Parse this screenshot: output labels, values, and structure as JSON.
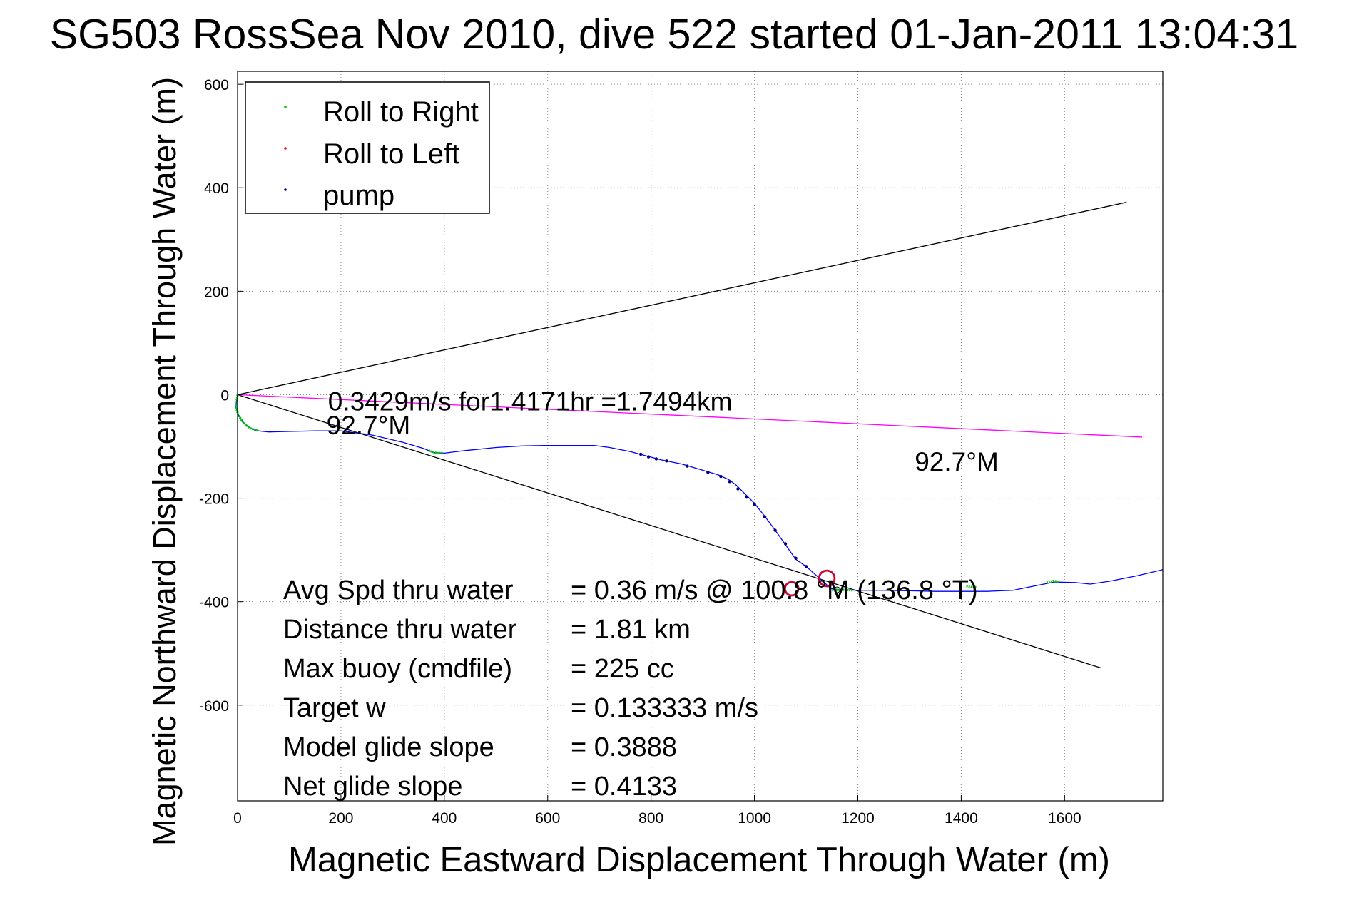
{
  "chart_data": {
    "type": "scatter",
    "title": "SG503 RossSea Nov 2010, dive 522 started 01-Jan-2011 13:04:31",
    "xlabel": "Magnetic Eastward Displacement Through Water (m)",
    "ylabel": "Magnetic Northward Displacement Through Water (m)",
    "xlim": [
      0,
      1790
    ],
    "ylim": [
      -785,
      625
    ],
    "xticks": [
      0,
      200,
      400,
      600,
      800,
      1000,
      1200,
      1400,
      1600
    ],
    "yticks": [
      600,
      400,
      200,
      0,
      -200,
      -400,
      -600
    ],
    "grid": true,
    "legend_position": "top-left",
    "legend": [
      {
        "label": "Roll to Right",
        "color": "#00cc00"
      },
      {
        "label": "Roll to Left",
        "color": "#ff0000"
      },
      {
        "label": "pump",
        "color": "#000080"
      }
    ],
    "track": {
      "color": "#0000ff",
      "points": [
        [
          0,
          0
        ],
        [
          -2,
          -12
        ],
        [
          -3,
          -25
        ],
        [
          2,
          -40
        ],
        [
          12,
          -55
        ],
        [
          25,
          -65
        ],
        [
          40,
          -70
        ],
        [
          60,
          -72
        ],
        [
          100,
          -71
        ],
        [
          150,
          -70
        ],
        [
          200,
          -70
        ],
        [
          260,
          -78
        ],
        [
          320,
          -92
        ],
        [
          360,
          -104
        ],
        [
          380,
          -112
        ],
        [
          400,
          -113
        ],
        [
          440,
          -108
        ],
        [
          500,
          -102
        ],
        [
          550,
          -99
        ],
        [
          600,
          -98
        ],
        [
          650,
          -98
        ],
        [
          690,
          -98
        ],
        [
          720,
          -102
        ],
        [
          760,
          -110
        ],
        [
          790,
          -118
        ],
        [
          820,
          -126
        ],
        [
          860,
          -134
        ],
        [
          900,
          -146
        ],
        [
          930,
          -155
        ],
        [
          950,
          -164
        ],
        [
          965,
          -175
        ],
        [
          980,
          -190
        ],
        [
          1000,
          -210
        ],
        [
          1020,
          -235
        ],
        [
          1040,
          -262
        ],
        [
          1060,
          -290
        ],
        [
          1080,
          -318
        ],
        [
          1100,
          -332
        ],
        [
          1118,
          -348
        ],
        [
          1132,
          -360
        ],
        [
          1148,
          -375
        ],
        [
          1170,
          -377
        ],
        [
          1200,
          -378
        ],
        [
          1250,
          -378
        ],
        [
          1300,
          -379
        ],
        [
          1350,
          -380
        ],
        [
          1400,
          -380
        ],
        [
          1450,
          -380
        ],
        [
          1500,
          -378
        ],
        [
          1540,
          -370
        ],
        [
          1580,
          -362
        ],
        [
          1620,
          -363
        ],
        [
          1650,
          -366
        ],
        [
          1690,
          -360
        ],
        [
          1740,
          -350
        ],
        [
          1790,
          -338
        ]
      ]
    },
    "roll_right_segments": [
      [
        [
          0,
          0
        ],
        [
          -2,
          -12
        ],
        [
          -3,
          -25
        ],
        [
          2,
          -40
        ],
        [
          12,
          -55
        ],
        [
          25,
          -65
        ],
        [
          40,
          -70
        ]
      ],
      [
        [
          370,
          -108
        ],
        [
          385,
          -113
        ],
        [
          398,
          -113
        ]
      ],
      [
        [
          1150,
          -378
        ],
        [
          1170,
          -377
        ],
        [
          1190,
          -378
        ]
      ],
      [
        [
          1410,
          -370
        ],
        [
          1420,
          -372
        ],
        [
          1430,
          -372
        ]
      ],
      [
        [
          1565,
          -363
        ],
        [
          1578,
          -360
        ],
        [
          1590,
          -362
        ]
      ]
    ],
    "roll_left_loops": [
      {
        "center": [
          1072,
          -375
        ],
        "r": 13
      },
      {
        "center": [
          1140,
          -355
        ],
        "r": 15
      }
    ],
    "pump_points": [
      [
        780,
        -115
      ],
      [
        795,
        -120
      ],
      [
        810,
        -124
      ],
      [
        830,
        -128
      ],
      [
        870,
        -138
      ],
      [
        910,
        -150
      ],
      [
        935,
        -158
      ],
      [
        952,
        -168
      ],
      [
        968,
        -182
      ],
      [
        985,
        -198
      ],
      [
        1000,
        -212
      ],
      [
        1020,
        -236
      ],
      [
        1040,
        -262
      ],
      [
        1060,
        -288
      ],
      [
        1080,
        -316
      ],
      [
        1100,
        -332
      ]
    ],
    "lines": [
      {
        "name": "",
        "color": "#000000",
        "x": [
          0,
          1720
        ],
        "y": [
          0,
          372
        ]
      },
      {
        "name": "",
        "color": "#000000",
        "x": [
          0,
          1670
        ],
        "y": [
          0,
          -528
        ]
      },
      {
        "name": "",
        "color": "#ff00ff",
        "x": [
          0,
          1750
        ],
        "y": [
          0,
          -82
        ]
      }
    ],
    "annotations": [
      {
        "text": "0.3429m/s for1.4171hr =1.7494km",
        "x": 175,
        "y": -14
      },
      {
        "text": "92.7°M",
        "x": 172,
        "y": -60
      },
      {
        "text": "92.7°M",
        "x": 1310,
        "y": -130
      }
    ],
    "stats": [
      {
        "label": "Avg Spd thru water",
        "value": "=  0.36 m/s @ 100.8 °M (136.8 °T)"
      },
      {
        "label": "Distance thru water",
        "value": "=  1.81 km"
      },
      {
        "label": "Max buoy (cmdfile)",
        "value": "= 225 cc"
      },
      {
        "label": "Target w",
        "value": "= 0.133333 m/s"
      },
      {
        "label": "Model glide slope",
        "value": "= 0.3888"
      },
      {
        "label": "Net glide slope",
        "value": "= 0.4133"
      }
    ]
  }
}
